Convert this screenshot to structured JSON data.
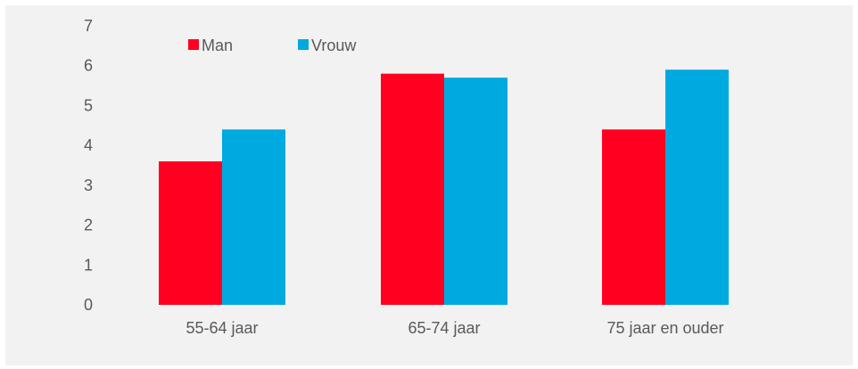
{
  "chart_data": {
    "type": "bar",
    "categories": [
      "55-64 jaar",
      "65-74 jaar",
      "75 jaar en ouder"
    ],
    "series": [
      {
        "name": "Man",
        "values": [
          3.6,
          5.8,
          4.4
        ],
        "color": "#ff0021"
      },
      {
        "name": "Vrouw",
        "values": [
          4.4,
          5.7,
          5.9
        ],
        "color": "#00a9e0"
      }
    ],
    "ylim": [
      0,
      7
    ],
    "yticks": [
      "0",
      "1",
      "2",
      "3",
      "4",
      "5",
      "6",
      "7"
    ],
    "grid": false,
    "legend_position": "top-left"
  }
}
